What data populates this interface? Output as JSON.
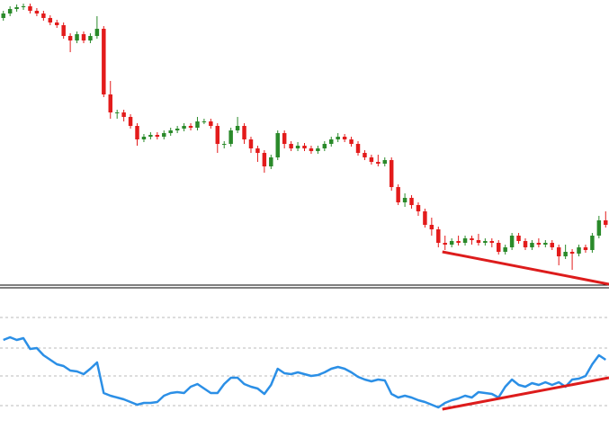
{
  "chart_data": [
    {
      "type": "candlestick",
      "open": [
        300,
        305,
        310,
        312,
        313,
        308,
        305,
        300,
        295,
        292,
        280,
        275,
        282,
        275,
        280,
        288,
        215,
        195,
        195,
        190,
        180,
        165,
        168,
        170,
        168,
        172,
        175,
        177,
        180,
        178,
        185,
        185,
        180,
        160,
        160,
        175,
        180,
        165,
        155,
        150,
        135,
        145,
        172,
        160,
        155,
        158,
        155,
        152,
        155,
        160,
        165,
        168,
        165,
        160,
        150,
        145,
        140,
        138,
        142,
        112,
        95,
        100,
        92,
        85,
        70,
        65,
        50,
        48,
        52,
        50,
        55,
        53,
        50,
        52,
        50,
        40,
        45,
        58,
        52,
        45,
        50,
        48,
        50,
        45,
        35,
        40,
        38,
        45,
        42,
        58,
        75
      ],
      "high": [
        308,
        313,
        315,
        316,
        316,
        311,
        308,
        303,
        298,
        295,
        283,
        285,
        285,
        283,
        302,
        291,
        230,
        198,
        198,
        193,
        183,
        171,
        173,
        173,
        175,
        178,
        180,
        183,
        183,
        190,
        188,
        188,
        183,
        163,
        178,
        190,
        183,
        168,
        158,
        153,
        148,
        175,
        175,
        163,
        162,
        161,
        158,
        158,
        163,
        168,
        172,
        171,
        168,
        163,
        153,
        148,
        148,
        145,
        145,
        115,
        105,
        103,
        95,
        88,
        78,
        68,
        58,
        55,
        58,
        58,
        58,
        60,
        55,
        55,
        53,
        48,
        61,
        61,
        55,
        53,
        55,
        53,
        53,
        48,
        48,
        43,
        48,
        48,
        61,
        80,
        85
      ],
      "low": [
        297,
        302,
        307,
        309,
        305,
        302,
        297,
        292,
        289,
        277,
        262,
        272,
        272,
        272,
        277,
        212,
        188,
        188,
        185,
        177,
        158,
        162,
        165,
        165,
        165,
        169,
        172,
        174,
        175,
        175,
        182,
        177,
        150,
        155,
        157,
        172,
        160,
        150,
        140,
        128,
        132,
        142,
        155,
        152,
        152,
        152,
        149,
        149,
        152,
        157,
        162,
        162,
        157,
        147,
        142,
        137,
        135,
        135,
        108,
        92,
        90,
        88,
        80,
        67,
        58,
        45,
        42,
        45,
        47,
        47,
        48,
        47,
        47,
        45,
        37,
        37,
        42,
        49,
        42,
        42,
        45,
        45,
        42,
        25,
        32,
        20,
        35,
        39,
        39,
        55,
        67
      ],
      "close": [
        305,
        310,
        312,
        313,
        308,
        305,
        300,
        295,
        292,
        280,
        275,
        282,
        275,
        280,
        288,
        215,
        195,
        195,
        190,
        180,
        165,
        168,
        170,
        168,
        172,
        175,
        177,
        180,
        178,
        185,
        185,
        180,
        160,
        160,
        175,
        180,
        165,
        155,
        150,
        135,
        145,
        172,
        160,
        155,
        158,
        155,
        152,
        155,
        160,
        165,
        168,
        165,
        160,
        150,
        145,
        140,
        138,
        142,
        112,
        95,
        100,
        92,
        85,
        70,
        65,
        50,
        48,
        52,
        50,
        55,
        53,
        50,
        52,
        50,
        40,
        45,
        58,
        52,
        45,
        50,
        48,
        50,
        45,
        35,
        40,
        38,
        45,
        42,
        58,
        75,
        70
      ],
      "up_color": "#2a8a2a",
      "down_color": "#e31b1b",
      "ylim": [
        0,
        320
      ],
      "trendline": {
        "x": [
          66.1,
          91
        ],
        "values": [
          40,
          4
        ],
        "color": "#dd1c1c"
      }
    },
    {
      "type": "line",
      "values": [
        99,
        102,
        99,
        101,
        89,
        90,
        82,
        77,
        72,
        70,
        65,
        64,
        61,
        67,
        74,
        40,
        37,
        35,
        33,
        30,
        27,
        29,
        29,
        30,
        37,
        40,
        41,
        40,
        47,
        50,
        45,
        40,
        40,
        50,
        57,
        57,
        50,
        47,
        45,
        39,
        49,
        67,
        62,
        61,
        63,
        61,
        59,
        60,
        63,
        67,
        69,
        67,
        63,
        58,
        55,
        53,
        55,
        54,
        39,
        35,
        37,
        35,
        32,
        30,
        27,
        24,
        29,
        32,
        34,
        37,
        35,
        41,
        40,
        39,
        35,
        47,
        55,
        49,
        47,
        51,
        49,
        52,
        49,
        52,
        47,
        55,
        56,
        59,
        72,
        82,
        77
      ],
      "color": "#2b8fe6",
      "ylim": [
        0,
        157
      ],
      "levels": [
        26,
        59,
        90,
        124
      ],
      "trendline": {
        "x": [
          66.1,
          91
        ],
        "values": [
          22,
          57
        ],
        "color": "#dd1c1c"
      }
    }
  ]
}
